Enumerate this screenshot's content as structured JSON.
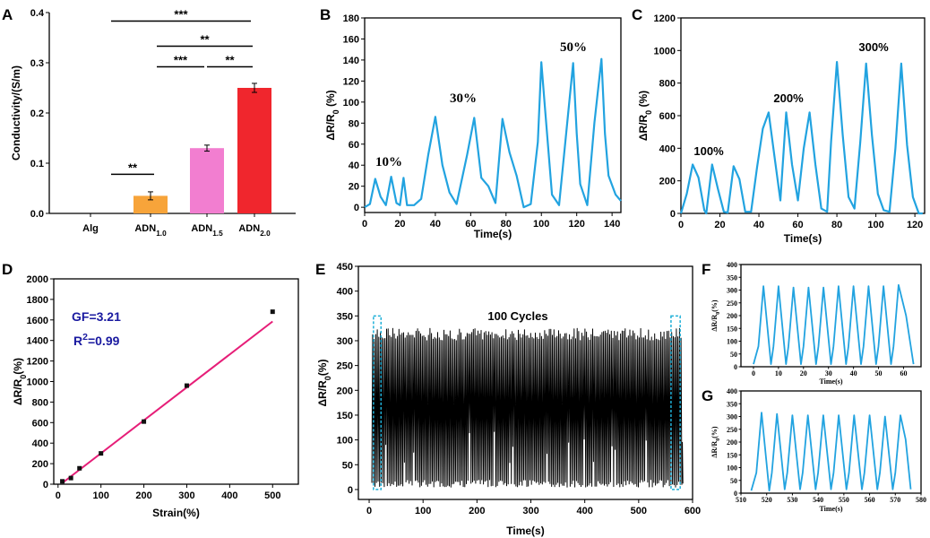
{
  "colors": {
    "signal": "#22a3e0",
    "fit_line": "#e61e78",
    "annotation_blue": "#1a1aa0",
    "dashed_box": "#1fb0d8",
    "cycle_fill": "#000000"
  },
  "chart_data": [
    {
      "panel": "A",
      "type": "bar",
      "title": "",
      "xlabel": "",
      "ylabel": "Conductivity/(S/m)",
      "ylim": [
        0,
        0.4
      ],
      "yticks": [
        "0.0",
        "0.1",
        "0.2",
        "0.3",
        "0.4"
      ],
      "categories": [
        {
          "base": "Alg",
          "sub": ""
        },
        {
          "base": "ADN",
          "sub": "1.0"
        },
        {
          "base": "ADN",
          "sub": "1.5"
        },
        {
          "base": "ADN",
          "sub": "2.0"
        }
      ],
      "values": [
        0.0,
        0.035,
        0.13,
        0.25
      ],
      "errors": [
        0.0,
        0.008,
        0.006,
        0.009
      ],
      "bar_colors": [
        "#ffffff",
        "#f7a43a",
        "#f27ed0",
        "#f0262d"
      ],
      "significance": [
        {
          "from": 0,
          "to": 1,
          "y": 0.078,
          "label": "**"
        },
        {
          "from": 2,
          "to": 3,
          "y": 0.292,
          "label": "**"
        },
        {
          "from": 1,
          "to": 2,
          "y": 0.292,
          "label": "***"
        },
        {
          "from": 1,
          "to": 3,
          "y": 0.333,
          "label": "**"
        },
        {
          "from": 0,
          "to": 3,
          "y": 0.383,
          "label": "***"
        }
      ]
    },
    {
      "panel": "B",
      "type": "line",
      "xlabel": "Time(s)",
      "ylabel": "ΔR/R0 (%)",
      "xlim": [
        0,
        145
      ],
      "ylim": [
        -5,
        180
      ],
      "xticks": [
        0,
        20,
        40,
        60,
        80,
        100,
        120,
        140
      ],
      "yticks": [
        0,
        20,
        40,
        60,
        80,
        100,
        120,
        140,
        160,
        180
      ],
      "x": [
        0,
        3,
        6,
        9,
        12,
        15,
        18,
        20,
        22,
        24,
        28,
        32,
        36,
        40,
        44,
        48,
        52,
        58,
        62,
        66,
        70,
        74,
        78,
        82,
        86,
        90,
        94,
        98,
        100,
        102,
        106,
        110,
        114,
        118,
        120,
        122,
        126,
        130,
        134,
        136,
        138,
        142,
        145
      ],
      "y": [
        0,
        3,
        27,
        10,
        2,
        29,
        4,
        2,
        28,
        2,
        2,
        8,
        50,
        86,
        40,
        14,
        3,
        50,
        85,
        28,
        20,
        4,
        84,
        52,
        30,
        0,
        3,
        62,
        138,
        95,
        12,
        2,
        70,
        137,
        70,
        22,
        2,
        80,
        141,
        70,
        30,
        12,
        6
      ],
      "annotations": [
        "10%",
        "30%",
        "50%"
      ]
    },
    {
      "panel": "C",
      "type": "line",
      "xlabel": "Time(s)",
      "ylabel": "ΔR/R0 (%)",
      "xlim": [
        0,
        125
      ],
      "ylim": [
        0,
        1200
      ],
      "xticks": [
        0,
        20,
        40,
        60,
        80,
        100,
        120
      ],
      "yticks": [
        0,
        200,
        400,
        600,
        800,
        1000,
        1200
      ],
      "x": [
        0,
        3,
        6,
        9,
        12,
        13,
        16,
        19,
        22,
        24,
        27,
        30,
        33,
        36,
        39,
        42,
        45,
        48,
        51,
        54,
        57,
        60,
        63,
        66,
        69,
        72,
        75,
        77,
        80,
        83,
        86,
        89,
        92,
        95,
        98,
        101,
        104,
        107,
        110,
        113,
        116,
        119,
        122,
        124
      ],
      "y": [
        0,
        120,
        300,
        220,
        20,
        0,
        300,
        150,
        10,
        5,
        290,
        210,
        10,
        10,
        280,
        520,
        620,
        350,
        80,
        620,
        300,
        80,
        400,
        620,
        300,
        30,
        10,
        440,
        930,
        480,
        100,
        30,
        440,
        920,
        480,
        120,
        20,
        10,
        400,
        920,
        420,
        100,
        0,
        0
      ],
      "annotations": [
        "100%",
        "200%",
        "300%"
      ]
    },
    {
      "panel": "D",
      "type": "scatter",
      "xlabel": "Strain(%)",
      "ylabel": "ΔR/R0(%)",
      "xlim": [
        -10,
        560
      ],
      "ylim": [
        0,
        2000
      ],
      "xticks": [
        0,
        100,
        200,
        300,
        400,
        500
      ],
      "yticks": [
        0,
        200,
        400,
        600,
        800,
        1000,
        1200,
        1400,
        1600,
        1800,
        2000
      ],
      "x": [
        10,
        30,
        50,
        100,
        200,
        300,
        500
      ],
      "y": [
        28,
        60,
        155,
        300,
        610,
        960,
        1680
      ],
      "fit": {
        "slope": 3.21,
        "intercept": -20,
        "x_range": [
          10,
          500
        ]
      },
      "annotations": [
        "GF=3.21",
        "R2=0.99"
      ]
    },
    {
      "panel": "E",
      "type": "line",
      "title": "100 Cycles",
      "xlabel": "Time(s)",
      "ylabel": "ΔR/R0(%)",
      "xlim": [
        -20,
        600
      ],
      "ylim": [
        -20,
        450
      ],
      "xticks": [
        0,
        100,
        200,
        300,
        400,
        500,
        600
      ],
      "yticks": [
        0,
        50,
        100,
        150,
        200,
        250,
        300,
        350,
        400,
        450
      ],
      "cycles": 100,
      "time_range": [
        5,
        580
      ],
      "peak_range": [
        300,
        325
      ],
      "valley_range": [
        5,
        20
      ],
      "highlight_ranges": [
        [
          8,
          22
        ],
        [
          560,
          577
        ]
      ]
    },
    {
      "panel": "F",
      "type": "line",
      "xlabel": "Time(s)",
      "ylabel": "ΔR/R0(%)",
      "xlim": [
        -5,
        67
      ],
      "ylim": [
        0,
        400
      ],
      "xticks": [
        0,
        10,
        20,
        30,
        40,
        50,
        60
      ],
      "yticks": [
        0,
        50,
        100,
        150,
        200,
        250,
        300,
        350,
        400
      ],
      "x": [
        0,
        2,
        4,
        7,
        8,
        10,
        13,
        14,
        16,
        19,
        20,
        22,
        25,
        26,
        28,
        31,
        32,
        34,
        37,
        38,
        40,
        43,
        44,
        46,
        49,
        50,
        52,
        55,
        56,
        58,
        61,
        64
      ],
      "y": [
        10,
        80,
        315,
        10,
        80,
        315,
        10,
        80,
        310,
        10,
        80,
        310,
        10,
        80,
        310,
        10,
        80,
        315,
        10,
        80,
        315,
        10,
        80,
        315,
        10,
        80,
        315,
        10,
        80,
        320,
        200,
        10
      ]
    },
    {
      "panel": "G",
      "type": "line",
      "xlabel": "Time(s)",
      "ylabel": "ΔR/R0(%)",
      "xlim": [
        510,
        580
      ],
      "ylim": [
        0,
        400
      ],
      "xticks": [
        510,
        520,
        530,
        540,
        550,
        560,
        570,
        580
      ],
      "yticks": [
        0,
        50,
        100,
        150,
        200,
        250,
        300,
        350,
        400
      ],
      "x": [
        514,
        516,
        518,
        521,
        522,
        524,
        527,
        528,
        530,
        533,
        534,
        536,
        539,
        540,
        542,
        545,
        546,
        548,
        551,
        552,
        554,
        557,
        558,
        560,
        563,
        564,
        566,
        569,
        570,
        572,
        574,
        576
      ],
      "y": [
        10,
        80,
        315,
        10,
        80,
        310,
        15,
        80,
        305,
        15,
        80,
        305,
        15,
        80,
        305,
        15,
        80,
        305,
        15,
        80,
        305,
        15,
        80,
        305,
        15,
        80,
        300,
        15,
        80,
        305,
        210,
        15
      ]
    }
  ]
}
